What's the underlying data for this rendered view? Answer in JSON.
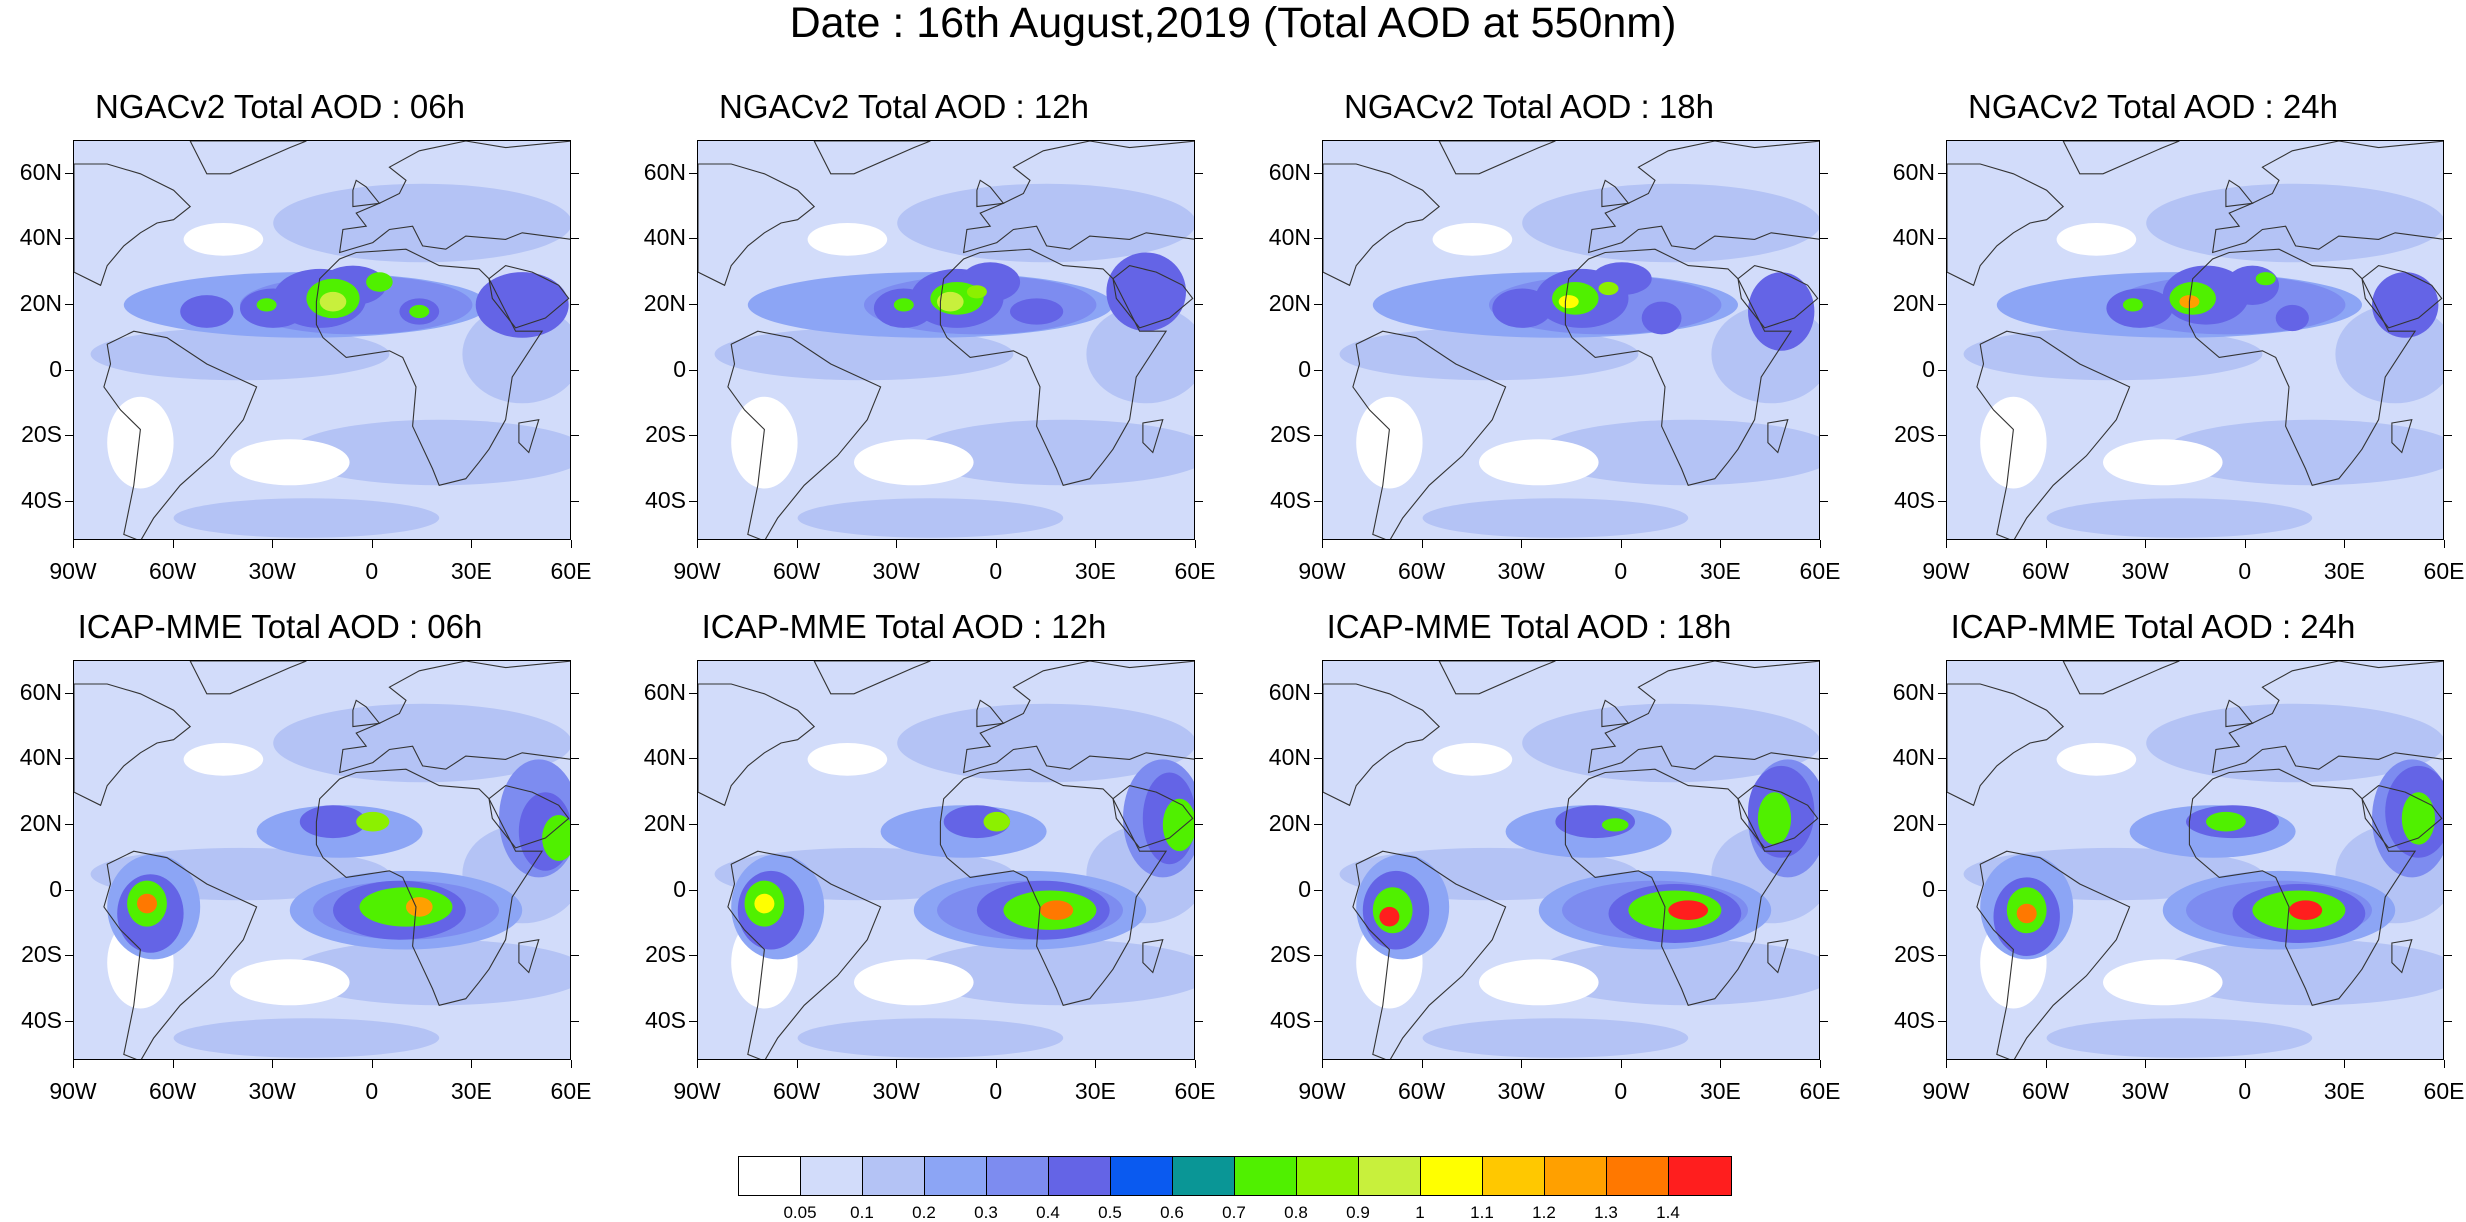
{
  "title": "Date : 16th August,2019 (Total AOD at 550nm)",
  "map_axes": {
    "lat_labels": [
      "60N",
      "40N",
      "20N",
      "0",
      "20S",
      "40S"
    ],
    "lat_values": [
      60,
      40,
      20,
      0,
      -20,
      -40
    ],
    "lat_range": [
      -52,
      70
    ],
    "lon_labels": [
      "90W",
      "60W",
      "30W",
      "0",
      "30E",
      "60E"
    ],
    "lon_values": [
      -90,
      -60,
      -30,
      0,
      30,
      60
    ],
    "lon_range": [
      -90,
      60
    ]
  },
  "panels": [
    {
      "model": "NGAC",
      "title": "NGACv2 Total AOD : 06h"
    },
    {
      "model": "NGAC",
      "title": "NGACv2 Total AOD : 12h"
    },
    {
      "model": "NGAC",
      "title": "NGACv2 Total AOD : 18h"
    },
    {
      "model": "NGAC",
      "title": "NGACv2 Total AOD : 24h"
    },
    {
      "model": "ICAP",
      "title": "ICAP-MME Total AOD : 06h"
    },
    {
      "model": "ICAP",
      "title": "ICAP-MME Total AOD : 12h"
    },
    {
      "model": "ICAP",
      "title": "ICAP-MME Total AOD : 18h"
    },
    {
      "model": "ICAP",
      "title": "ICAP-MME Total AOD : 24h"
    }
  ],
  "colorbar": {
    "colors": [
      "#ffffff",
      "#d2dcfa",
      "#b4c3f5",
      "#8ca5f5",
      "#7d8cf0",
      "#6464e6",
      "#0a5af0",
      "#0a9696",
      "#50f000",
      "#8cf000",
      "#c8f03c",
      "#ffff00",
      "#ffc800",
      "#ffa000",
      "#ff7800",
      "#ff1e1e"
    ],
    "labels": [
      "0.05",
      "0.1",
      "0.2",
      "0.3",
      "0.4",
      "0.5",
      "0.6",
      "0.7",
      "0.8",
      "0.9",
      "1",
      "1.1",
      "1.2",
      "1.3",
      "1.4"
    ]
  }
}
